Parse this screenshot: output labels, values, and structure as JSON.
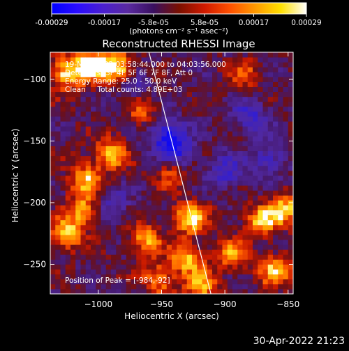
{
  "colors": {
    "background": "#000000",
    "foreground": "#ffffff",
    "colorbar_stops": [
      "#0000ff",
      "#2a0cff",
      "#4a1fd0",
      "#5a2aa0",
      "#3a1060",
      "#7a1000",
      "#d01a00",
      "#ff5000",
      "#ff9a00",
      "#ffe000",
      "#ffffff"
    ]
  },
  "colorbar": {
    "ticks": [
      "-0.00029",
      "-0.00017",
      "-5.8e-05",
      "5.8e-05",
      "0.00017",
      "0.00029"
    ],
    "tick_values": [
      -0.00029,
      -0.00017,
      -5.8e-05,
      5.8e-05,
      0.00017,
      0.00029
    ],
    "range": [
      -0.00029,
      0.00029
    ],
    "unit_label": "(photons cm⁻² s⁻¹ asec⁻²)"
  },
  "chart_data": {
    "type": "heatmap",
    "title": "Reconstructed RHESSI Image",
    "xlabel": "Heliocentric X (arcsec)",
    "ylabel": "Heliocentric Y (arcsec)",
    "xlim": [
      -1038,
      -846
    ],
    "ylim": [
      -274,
      -78
    ],
    "xticks": [
      -1000,
      -950,
      -900,
      -850
    ],
    "yticks": [
      -100,
      -150,
      -200,
      -250
    ],
    "annotations": [
      "19-May-2002 03:58:44.000 to 04:03:56.000",
      "Detectors: 3F 4F 5F 6F 7F 8F, Att 0",
      "Energy Range: 25.0 - 50.0 keV",
      "Clean     Total counts: 4.89E+03"
    ],
    "peak_label": "Position of Peak = [-984,-92]",
    "limb_line": [
      [
        -960,
        -78
      ],
      [
        -911,
        -274
      ]
    ],
    "hot_spots": [
      {
        "x": -1025,
        "y": -95,
        "v": 0.9
      },
      {
        "x": -1005,
        "y": -88,
        "v": 1.0
      },
      {
        "x": -984,
        "y": -92,
        "v": 1.0
      },
      {
        "x": -990,
        "y": -160,
        "v": 0.8
      },
      {
        "x": -1010,
        "y": -180,
        "v": 0.75
      },
      {
        "x": -1025,
        "y": -225,
        "v": 0.8
      },
      {
        "x": -1012,
        "y": -205,
        "v": 0.7
      },
      {
        "x": -963,
        "y": -230,
        "v": 0.7
      },
      {
        "x": -942,
        "y": -175,
        "v": 0.55
      },
      {
        "x": -927,
        "y": -212,
        "v": 0.95
      },
      {
        "x": -930,
        "y": -245,
        "v": 0.8
      },
      {
        "x": -918,
        "y": -268,
        "v": 0.7
      },
      {
        "x": -952,
        "y": -262,
        "v": 0.65
      },
      {
        "x": -872,
        "y": -215,
        "v": 0.75
      },
      {
        "x": -853,
        "y": -205,
        "v": 0.8
      },
      {
        "x": -860,
        "y": -255,
        "v": 0.75
      },
      {
        "x": -895,
        "y": -242,
        "v": 0.6
      },
      {
        "x": -885,
        "y": -95,
        "v": 0.45
      },
      {
        "x": -965,
        "y": -125,
        "v": 0.5
      }
    ],
    "cold_spots": [
      {
        "x": -945,
        "y": -145,
        "v": 0.8
      },
      {
        "x": -938,
        "y": -160,
        "v": 0.6
      },
      {
        "x": -880,
        "y": -130,
        "v": 0.55
      },
      {
        "x": -900,
        "y": -175,
        "v": 0.55
      },
      {
        "x": -990,
        "y": -200,
        "v": 0.4
      },
      {
        "x": -975,
        "y": -105,
        "v": 0.45
      },
      {
        "x": -865,
        "y": -165,
        "v": 0.5
      }
    ]
  },
  "footer": {
    "timestamp": "30-Apr-2022 21:23"
  }
}
